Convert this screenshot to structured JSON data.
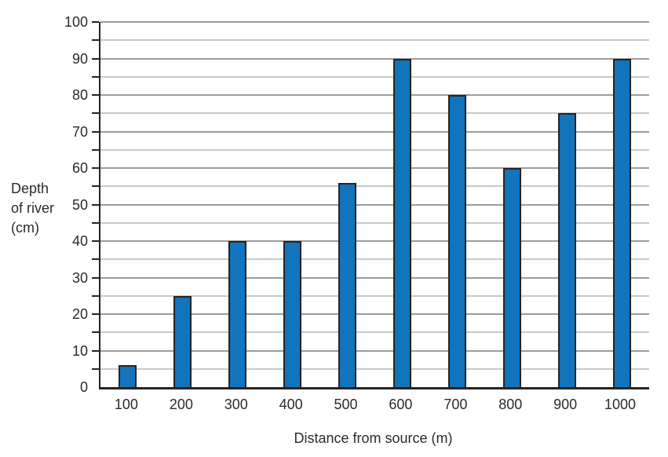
{
  "chart_data": {
    "type": "bar",
    "title": "",
    "xlabel": "Distance from source (m)",
    "ylabel": "Depth of river (cm)",
    "ylabel_lines": [
      "Depth",
      "of river",
      "(cm)"
    ],
    "categories": [
      "100",
      "200",
      "300",
      "400",
      "500",
      "600",
      "700",
      "800",
      "900",
      "1000"
    ],
    "values": [
      6,
      25,
      40,
      40,
      56,
      90,
      80,
      60,
      75,
      90
    ],
    "ylim": [
      0,
      100
    ],
    "ytick_labels": [
      "0",
      "10",
      "20",
      "30",
      "40",
      "50",
      "60",
      "70",
      "80",
      "90",
      "100"
    ],
    "ytick_step": 10,
    "minor_grid_step": 5,
    "grid": true,
    "legend": "none",
    "colors": {
      "bar_fill": "#1274bc",
      "bar_border": "#28231f",
      "axis": "#28231f",
      "grid_major": "#9c9c9c",
      "grid_minor": "#c9c9c9",
      "text": "#2e2a25",
      "background": "#ffffff"
    }
  }
}
